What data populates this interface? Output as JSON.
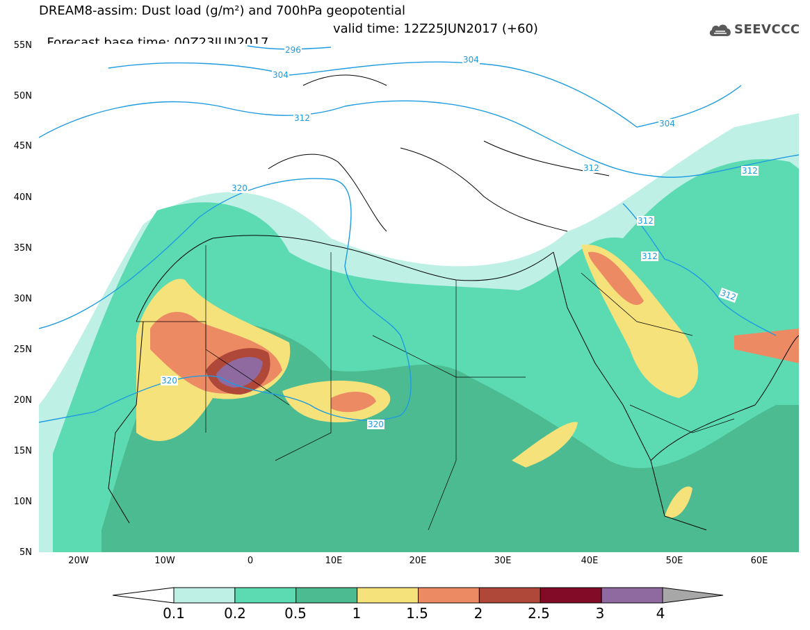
{
  "header": {
    "title_line1": "DREAM8-assim: Dust load (g/m²) and 700hPa geopotential",
    "base_time": "Forecast base time: 00Z23JUN2017",
    "valid_time": "valid time: 12Z25JUN2017 (+60)"
  },
  "logo": {
    "text": "SEEVCCC",
    "icon": "cloud-logo-icon"
  },
  "map": {
    "region": "North Africa, Europe and Middle East",
    "latitude_labels": [
      "55N",
      "50N",
      "45N",
      "40N",
      "35N",
      "30N",
      "25N",
      "20N",
      "15N",
      "10N",
      "5N"
    ],
    "longitude_labels": [
      "20W",
      "10W",
      "0",
      "10E",
      "20E",
      "30E",
      "40E",
      "50E",
      "60E"
    ],
    "geopotential_contour_labels": [
      "296",
      "304",
      "304",
      "304",
      "312",
      "312",
      "312",
      "312",
      "312",
      "312",
      "320",
      "320",
      "320"
    ]
  },
  "colorbar": {
    "labels": [
      "0.1",
      "0.2",
      "0.5",
      "1",
      "1.5",
      "2",
      "2.5",
      "3",
      "4"
    ],
    "colors": [
      "#bff0e6",
      "#5cdbb3",
      "#4dbb91",
      "#f5e27a",
      "#ec8b63",
      "#b0483a",
      "#820c28",
      "#8e6aa0",
      "#a7a7a7"
    ]
  },
  "colors": {
    "contour": "#1e9be0",
    "land_outline": "#000000"
  }
}
